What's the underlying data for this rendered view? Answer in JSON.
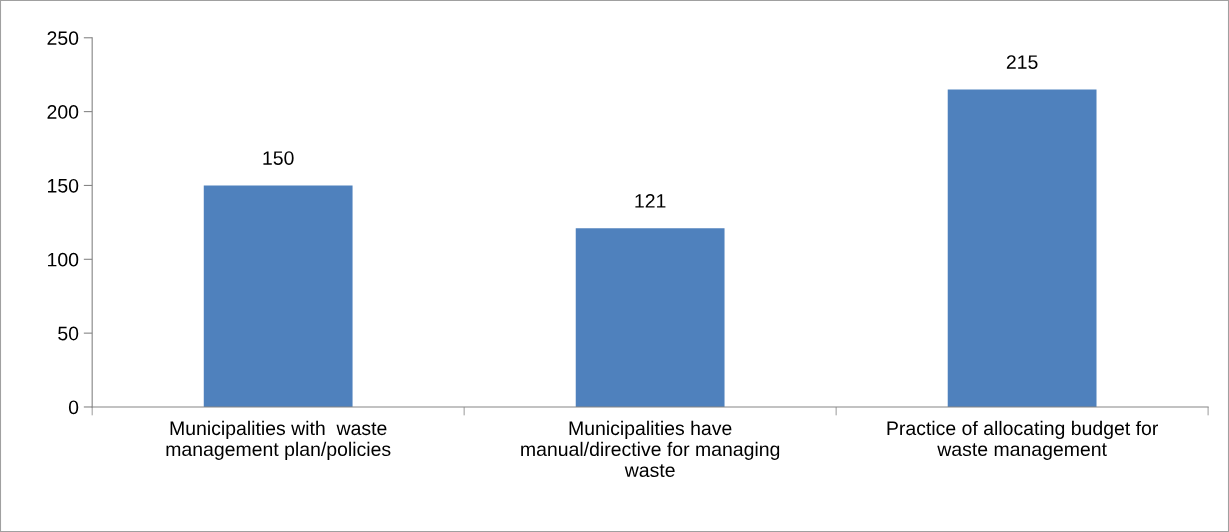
{
  "chart_data": {
    "type": "bar",
    "categories": [
      "Municipalities with  waste management plan/policies",
      "Municipalities have manual/directive for managing waste",
      "Practice of allocating budget for waste management"
    ],
    "values": [
      150,
      121,
      215
    ],
    "color": "#4f81bd",
    "ylim": [
      0,
      250
    ],
    "yticks": [
      0,
      50,
      100,
      150,
      200,
      250
    ],
    "data_labels": true,
    "grid": false,
    "legend": false
  }
}
